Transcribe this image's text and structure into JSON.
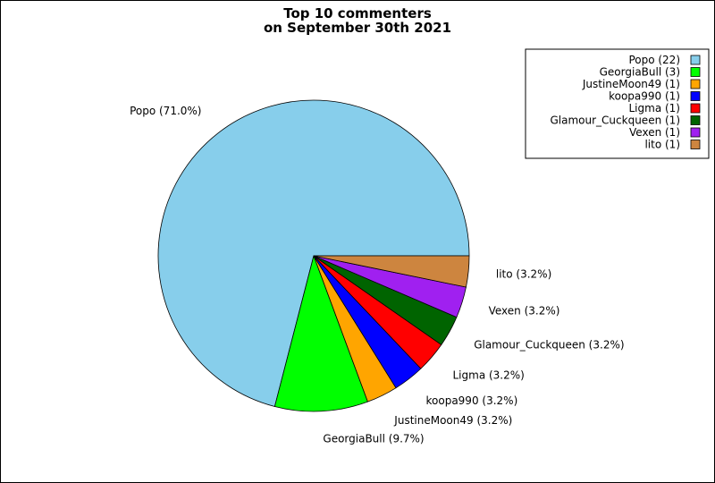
{
  "chart_data": {
    "type": "pie",
    "title_lines": [
      "Top 10 commenters",
      "on September 30th 2021"
    ],
    "slices": [
      {
        "name": "Popo",
        "value": 22,
        "label": "Popo (71.0%)",
        "legend": "Popo (22)",
        "color": "#87ceeb"
      },
      {
        "name": "GeorgiaBull",
        "value": 3,
        "label": "GeorgiaBull (9.7%)",
        "legend": "GeorgiaBull (3)",
        "color": "#00ff00"
      },
      {
        "name": "JustineMoon49",
        "value": 1,
        "label": "JustineMoon49 (3.2%)",
        "legend": "JustineMoon49 (1)",
        "color": "#ffa500"
      },
      {
        "name": "koopa990",
        "value": 1,
        "label": "koopa990 (3.2%)",
        "legend": "koopa990 (1)",
        "color": "#0000ff"
      },
      {
        "name": "Ligma",
        "value": 1,
        "label": "Ligma (3.2%)",
        "legend": "Ligma (1)",
        "color": "#ff0000"
      },
      {
        "name": "Glamour_Cuckqueen",
        "value": 1,
        "label": "Glamour_Cuckqueen (3.2%)",
        "legend": "Glamour_Cuckqueen (1)",
        "color": "#006400"
      },
      {
        "name": "Vexen",
        "value": 1,
        "label": "Vexen (3.2%)",
        "legend": "Vexen (1)",
        "color": "#a020f0"
      },
      {
        "name": "lito",
        "value": 1,
        "label": "lito (3.2%)",
        "legend": "lito (1)",
        "color": "#cd853f"
      }
    ],
    "legend_position": "top-right"
  }
}
